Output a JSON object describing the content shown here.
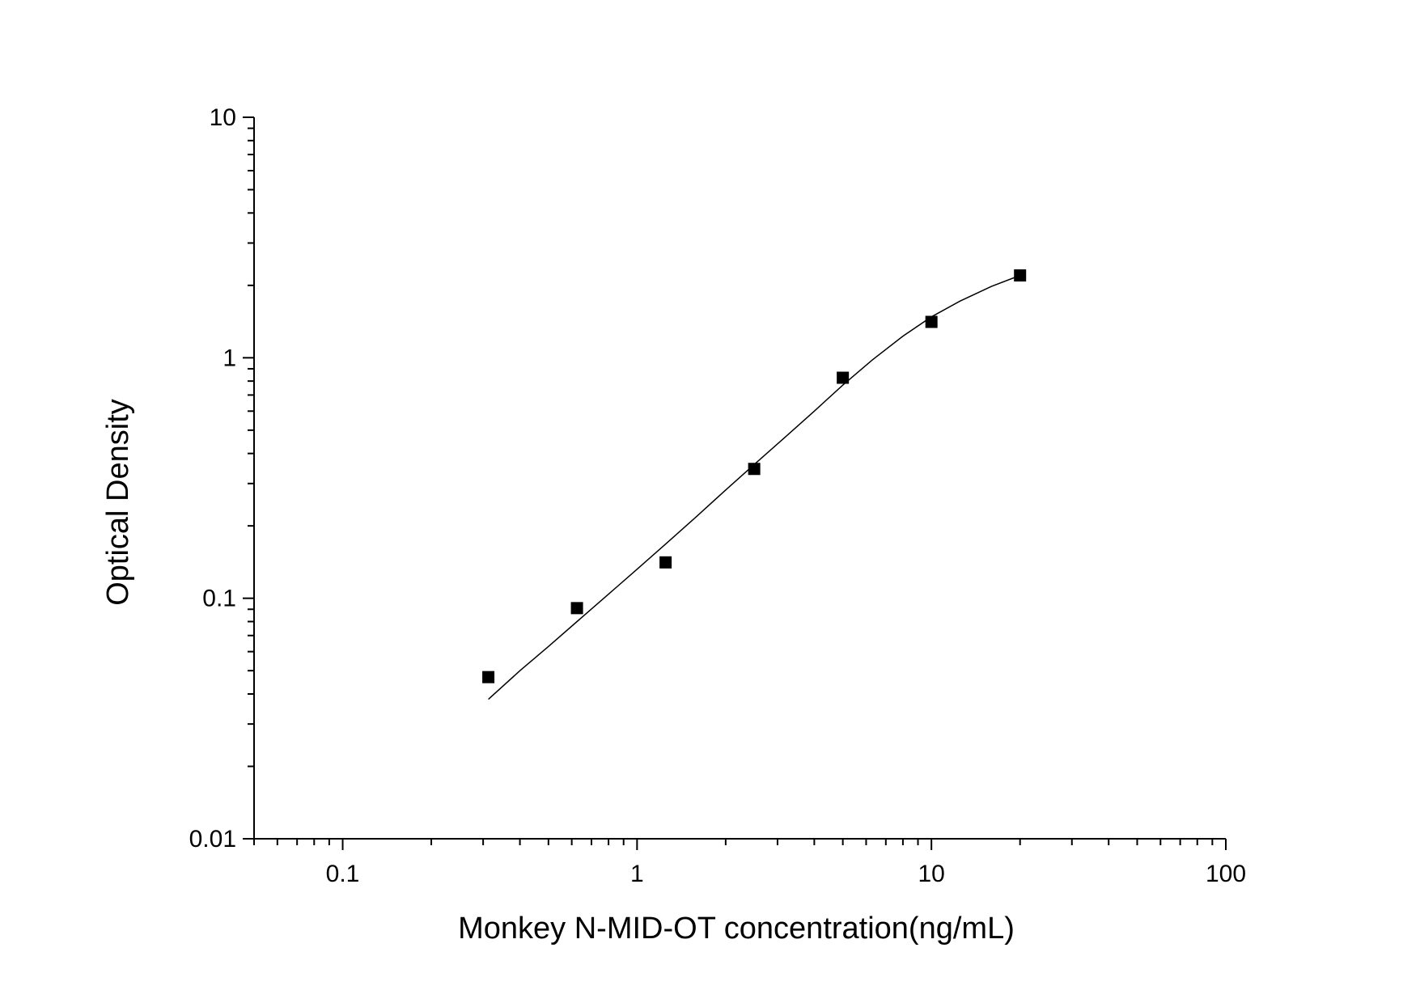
{
  "chart_data": {
    "type": "scatter",
    "title": "",
    "xlabel": "Monkey N-MID-OT concentration(ng/mL)",
    "ylabel": "Optical Density",
    "x_scale": "log",
    "y_scale": "log",
    "xlim": [
      0.05,
      100
    ],
    "ylim": [
      0.01,
      10
    ],
    "x_tick_values": [
      0.1,
      1,
      10,
      100
    ],
    "x_tick_labels": [
      "0.1",
      "1",
      "10",
      "100"
    ],
    "y_tick_values": [
      0.01,
      0.1,
      1,
      10
    ],
    "y_tick_labels": [
      "0.01",
      "0.1",
      "1",
      "10"
    ],
    "grid": false,
    "legend": "none",
    "series": [
      {
        "marker": "square",
        "color": "#000000",
        "x": [
          0.3125,
          0.625,
          1.25,
          2.5,
          5,
          10,
          20
        ],
        "y": [
          0.047,
          0.091,
          0.141,
          0.345,
          0.826,
          1.41,
          2.2
        ]
      }
    ],
    "fit_curve": {
      "color": "#000000",
      "x": [
        0.3125,
        0.4,
        0.5,
        0.625,
        0.8,
        1.0,
        1.25,
        1.6,
        2.0,
        2.5,
        3.2,
        4.0,
        5.0,
        6.3,
        8.0,
        10.0,
        12.5,
        16.0,
        20.0
      ],
      "y": [
        0.038,
        0.05,
        0.063,
        0.08,
        0.104,
        0.132,
        0.168,
        0.22,
        0.282,
        0.36,
        0.47,
        0.6,
        0.77,
        0.98,
        1.23,
        1.48,
        1.72,
        1.98,
        2.2
      ]
    }
  }
}
